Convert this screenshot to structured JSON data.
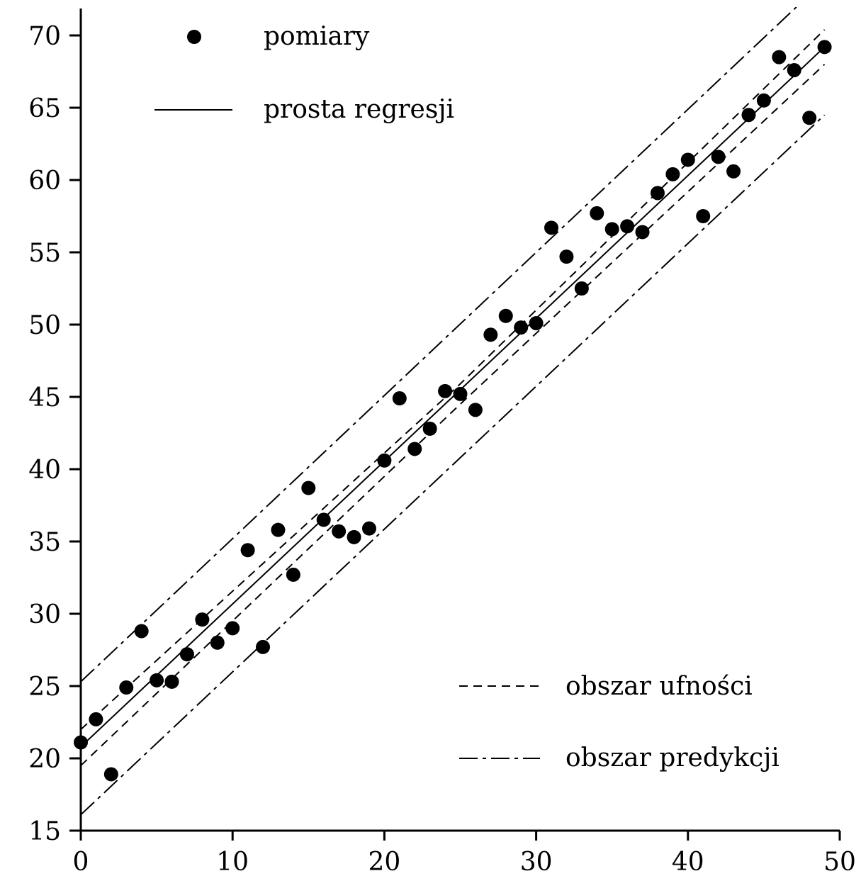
{
  "chart_data": {
    "type": "scatter",
    "title": "",
    "xlabel": "",
    "ylabel": "",
    "xlim": [
      0,
      50
    ],
    "ylim": [
      15,
      71
    ],
    "xticks": [
      0,
      10,
      20,
      30,
      40,
      50
    ],
    "yticks": [
      15,
      20,
      25,
      30,
      35,
      40,
      45,
      50,
      55,
      60,
      65,
      70
    ],
    "grid": false,
    "series": [
      {
        "name": "pomiary",
        "kind": "points",
        "x": [
          0,
          1,
          2,
          3,
          4,
          5,
          6,
          7,
          8,
          9,
          10,
          11,
          12,
          13,
          14,
          15,
          16,
          17,
          18,
          19,
          20,
          21,
          22,
          23,
          24,
          25,
          26,
          27,
          28,
          29,
          30,
          31,
          32,
          33,
          34,
          35,
          36,
          37,
          38,
          39,
          40,
          41,
          42,
          43,
          44,
          45,
          46,
          47,
          48,
          49
        ],
        "y": [
          21.1,
          22.7,
          18.9,
          24.9,
          28.8,
          25.4,
          25.3,
          27.2,
          29.6,
          28.0,
          29.0,
          34.4,
          27.7,
          35.8,
          32.7,
          38.7,
          36.5,
          35.7,
          35.3,
          35.9,
          40.6,
          44.9,
          41.4,
          42.8,
          45.4,
          45.2,
          44.1,
          49.3,
          50.6,
          49.8,
          50.1,
          56.7,
          54.7,
          52.5,
          57.7,
          56.6,
          56.8,
          56.4,
          59.1,
          60.4,
          61.4,
          57.5,
          61.6,
          60.6,
          64.5,
          65.5,
          68.5,
          67.6,
          64.3,
          69.2
        ]
      },
      {
        "name": "prosta regresji",
        "kind": "line",
        "x": [
          0,
          49
        ],
        "y": [
          20.8,
          69.2
        ]
      },
      {
        "name": "obszar ufności",
        "kind": "band",
        "x": [
          0,
          25,
          49
        ],
        "y_upper": [
          22.0,
          45.9,
          70.4
        ],
        "y_lower": [
          19.5,
          44.5,
          68.0
        ]
      },
      {
        "name": "obszar predykcji",
        "kind": "band",
        "x": [
          0,
          49
        ],
        "y_upper": [
          25.3,
          73.8
        ],
        "y_lower": [
          16.1,
          64.5
        ]
      }
    ]
  },
  "legend": {
    "points_label": "pomiary",
    "regression_label": "prosta regresji",
    "confidence_label": "obszar ufności",
    "prediction_label": "obszar predykcji"
  }
}
